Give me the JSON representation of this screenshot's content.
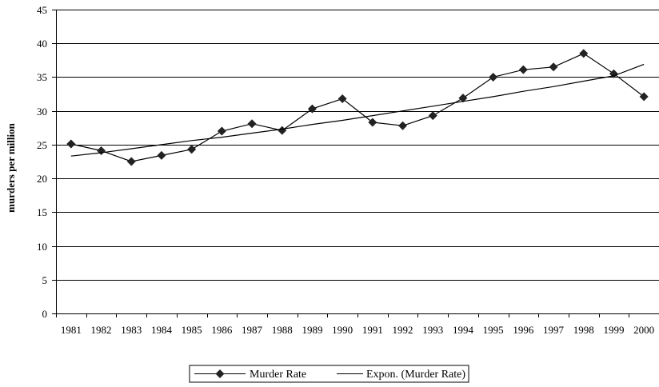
{
  "chart_data": {
    "type": "line",
    "title": "",
    "xlabel": "",
    "ylabel": "murders per million",
    "ylim": [
      0,
      45
    ],
    "yticks": [
      "0",
      "5",
      "10",
      "15",
      "20",
      "25",
      "30",
      "35",
      "40",
      "45"
    ],
    "categories": [
      "1981",
      "1982",
      "1983",
      "1984",
      "1985",
      "1986",
      "1987",
      "1988",
      "1989",
      "1990",
      "1991",
      "1992",
      "1993",
      "1994",
      "1995",
      "1996",
      "1997",
      "1998",
      "1999",
      "2000"
    ],
    "grid": true,
    "legend_position": "bottom",
    "series": [
      {
        "name": "Murder Rate",
        "marker": "diamond",
        "color": "#000000",
        "values": [
          25.1,
          24.1,
          22.5,
          23.4,
          24.3,
          27.0,
          28.1,
          27.1,
          30.3,
          31.8,
          28.3,
          27.8,
          29.3,
          31.9,
          35.0,
          36.1,
          36.5,
          38.5,
          35.5,
          32.1
        ]
      },
      {
        "name": "Expon. (Murder Rate)",
        "marker": "none",
        "color": "#000000",
        "trendline": "exponential",
        "values": [
          23.3,
          23.8,
          24.4,
          25.0,
          25.6,
          26.1,
          26.7,
          27.3,
          28.0,
          28.6,
          29.3,
          30.0,
          30.7,
          31.4,
          32.1,
          32.9,
          33.6,
          34.4,
          35.2,
          36.9
        ]
      }
    ]
  }
}
